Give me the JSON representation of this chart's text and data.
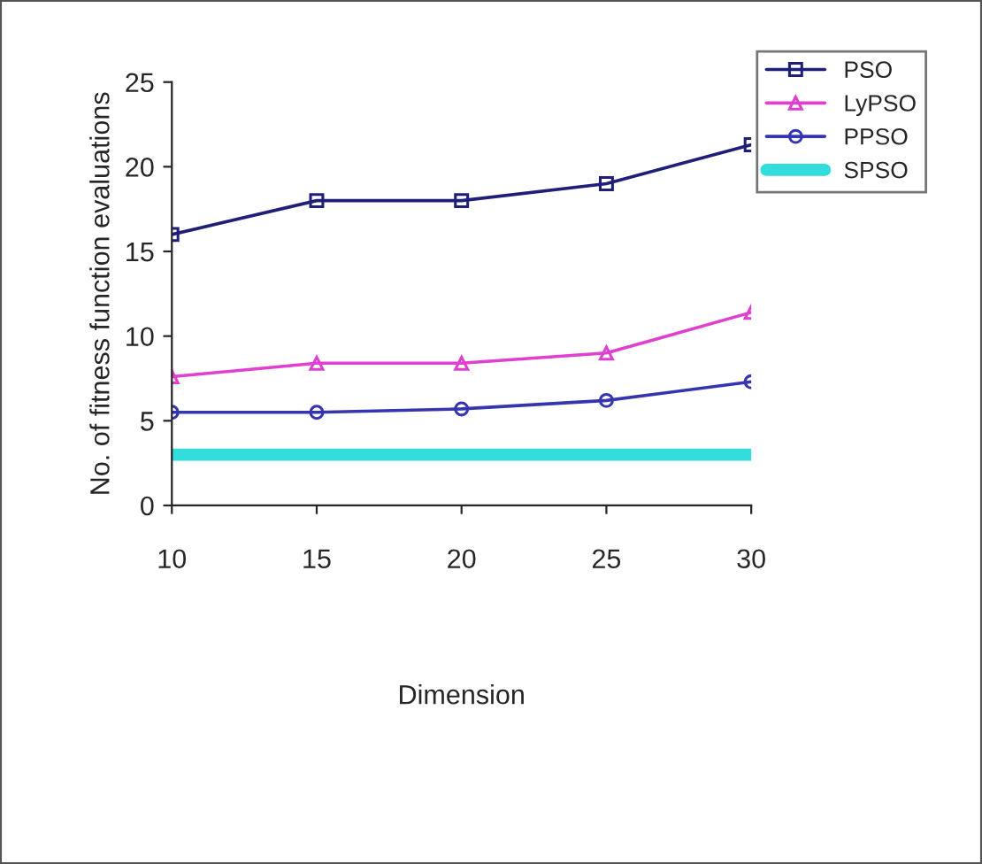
{
  "chart_data": {
    "type": "line",
    "xlabel": "Dimension",
    "ylabel": "No. of fitness function evaluations",
    "x": [
      10,
      15,
      20,
      25,
      30
    ],
    "series": [
      {
        "name": "PSO",
        "color": "#1f1f7a",
        "values": [
          16,
          18,
          18,
          19,
          21.3
        ],
        "marker": "square"
      },
      {
        "name": "LyPSO",
        "color": "#e040d0",
        "values": [
          7.6,
          8.4,
          8.4,
          9,
          11.4
        ],
        "marker": "triangle"
      },
      {
        "name": "PPSO",
        "color": "#3535b0",
        "values": [
          5.5,
          5.5,
          5.7,
          6.2,
          7.3
        ],
        "marker": "circle"
      },
      {
        "name": "SPSO",
        "color": "#33dddd",
        "values": [
          3,
          3,
          3,
          3,
          3
        ],
        "marker": "none"
      }
    ],
    "xlim": [
      10,
      30
    ],
    "xticks": [
      10,
      15,
      20,
      25,
      30
    ],
    "ylim": [
      0,
      25
    ],
    "yticks": [
      0,
      5,
      10,
      15,
      20,
      25
    ],
    "grid": false,
    "legend": "top right",
    "line_style": "solid"
  }
}
